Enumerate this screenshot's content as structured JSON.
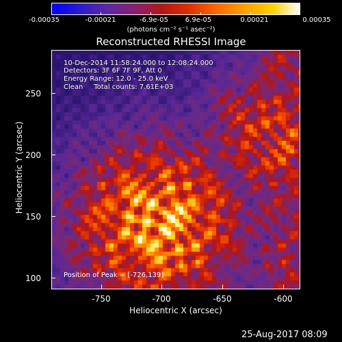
{
  "colorbar": {
    "ticks": [
      "-0.00035",
      "-0.00021",
      "-6.9e-05",
      "6.9e-05",
      "0.00021",
      "0.00035"
    ],
    "units": "(photons cm⁻² s⁻¹ asec⁻²)"
  },
  "title": "Reconstructed RHESSI Image",
  "info": {
    "line1": "10-Dec-2014 11:58:24.000 to 12:08:24.000",
    "line2": "Detectors: 3F 6F 7F 9F, Att 0",
    "line3": "Energy Range: 12.0 - 25.0 keV",
    "line4": "Clean     Total counts: 7.61E+03"
  },
  "peak": "Position of Peak = [-726,139]",
  "axes": {
    "xlabel": "Heliocentric X (arcsec)",
    "ylabel": "Heliocentric Y (arcsec)",
    "xticks": [
      "-750",
      "-700",
      "-650",
      "-600"
    ],
    "yticks": [
      "100",
      "150",
      "200",
      "250"
    ],
    "xrange": [
      -790,
      -590
    ],
    "yrange": [
      90,
      285
    ]
  },
  "timestamp": "25-Aug-2017 08:09",
  "colors": {
    "background": "#000000",
    "text": "#ffffff",
    "colormap": [
      "#0000ff",
      "#5a2a9a",
      "#8a2e8c",
      "#c21a1a",
      "#ff5a00",
      "#ffb400",
      "#ffffc8"
    ]
  }
}
